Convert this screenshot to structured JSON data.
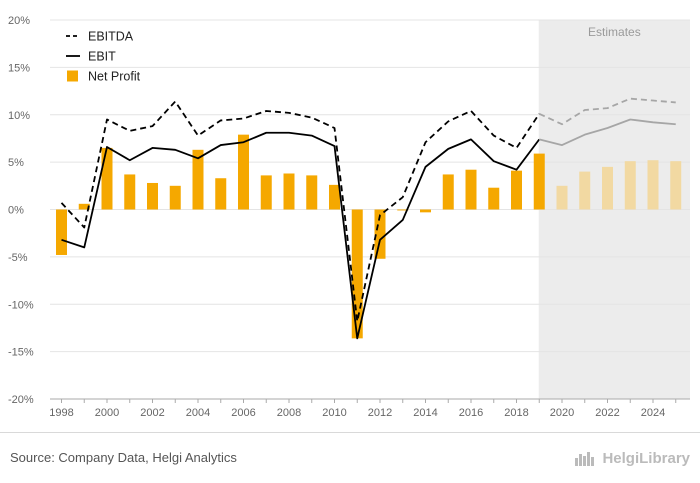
{
  "chart_data": {
    "type": "bar",
    "title": "",
    "xlabel": "",
    "ylabel": "",
    "ylim": [
      -20,
      20
    ],
    "yticks": [
      -20,
      -15,
      -10,
      -5,
      0,
      5,
      10,
      15,
      20
    ],
    "ytick_labels": [
      "-20%",
      "-15%",
      "-10%",
      "-5%",
      "0%",
      "5%",
      "10%",
      "15%",
      "20%"
    ],
    "xtick_labels": [
      "1998",
      "2000",
      "2002",
      "2004",
      "2006",
      "2008",
      "2010",
      "2012",
      "2014",
      "2016",
      "2018",
      "2020",
      "2022",
      "2024"
    ],
    "years": [
      1998,
      1999,
      2000,
      2001,
      2002,
      2003,
      2004,
      2005,
      2006,
      2007,
      2008,
      2009,
      2010,
      2011,
      2012,
      2013,
      2014,
      2015,
      2016,
      2017,
      2018,
      2019,
      2020,
      2021,
      2022,
      2023,
      2024,
      2025
    ],
    "estimates_start_year": 2019,
    "estimates_label": "Estimates",
    "grid": true,
    "legend_position": "top-left",
    "series": [
      {
        "name": "EBITDA",
        "kind": "line",
        "style": "dashed",
        "color": "#000000",
        "estimate_color": "#a6a6a6",
        "values": [
          0.7,
          -1.9,
          9.5,
          8.3,
          8.8,
          11.4,
          7.8,
          9.4,
          9.6,
          10.4,
          10.2,
          9.7,
          8.6,
          -11.8,
          -0.6,
          1.3,
          7.1,
          9.3,
          10.4,
          7.8,
          6.5,
          10.1,
          9.0,
          10.5,
          10.7,
          11.7,
          11.5,
          11.3
        ]
      },
      {
        "name": "EBIT",
        "kind": "line",
        "style": "solid",
        "color": "#000000",
        "estimate_color": "#a6a6a6",
        "values": [
          -3.2,
          -4.0,
          6.6,
          5.2,
          6.5,
          6.3,
          5.4,
          6.8,
          7.1,
          8.1,
          8.1,
          7.8,
          6.7,
          -13.6,
          -3.2,
          -1.1,
          4.5,
          6.4,
          7.4,
          5.1,
          4.2,
          7.4,
          6.8,
          7.9,
          8.6,
          9.5,
          9.2,
          9.0
        ]
      },
      {
        "name": "Net Profit",
        "kind": "bar",
        "color": "#f5a800",
        "estimate_color": "#f2d9a2",
        "values": [
          -4.8,
          0.6,
          6.5,
          3.7,
          2.8,
          2.5,
          6.3,
          3.3,
          7.9,
          3.6,
          3.8,
          3.6,
          2.6,
          -13.6,
          -5.2,
          -0.1,
          -0.3,
          3.7,
          4.2,
          2.3,
          4.1,
          5.9,
          2.5,
          4.0,
          4.5,
          5.1,
          5.2,
          5.1
        ]
      }
    ]
  },
  "footer": {
    "source": "Source: Company Data, Helgi Analytics",
    "logo_text": "HelgiLibrary"
  },
  "colors": {
    "estimates_shade": "#ececec",
    "grid": "#e4e4e4",
    "axis": "#aaaaaa"
  }
}
